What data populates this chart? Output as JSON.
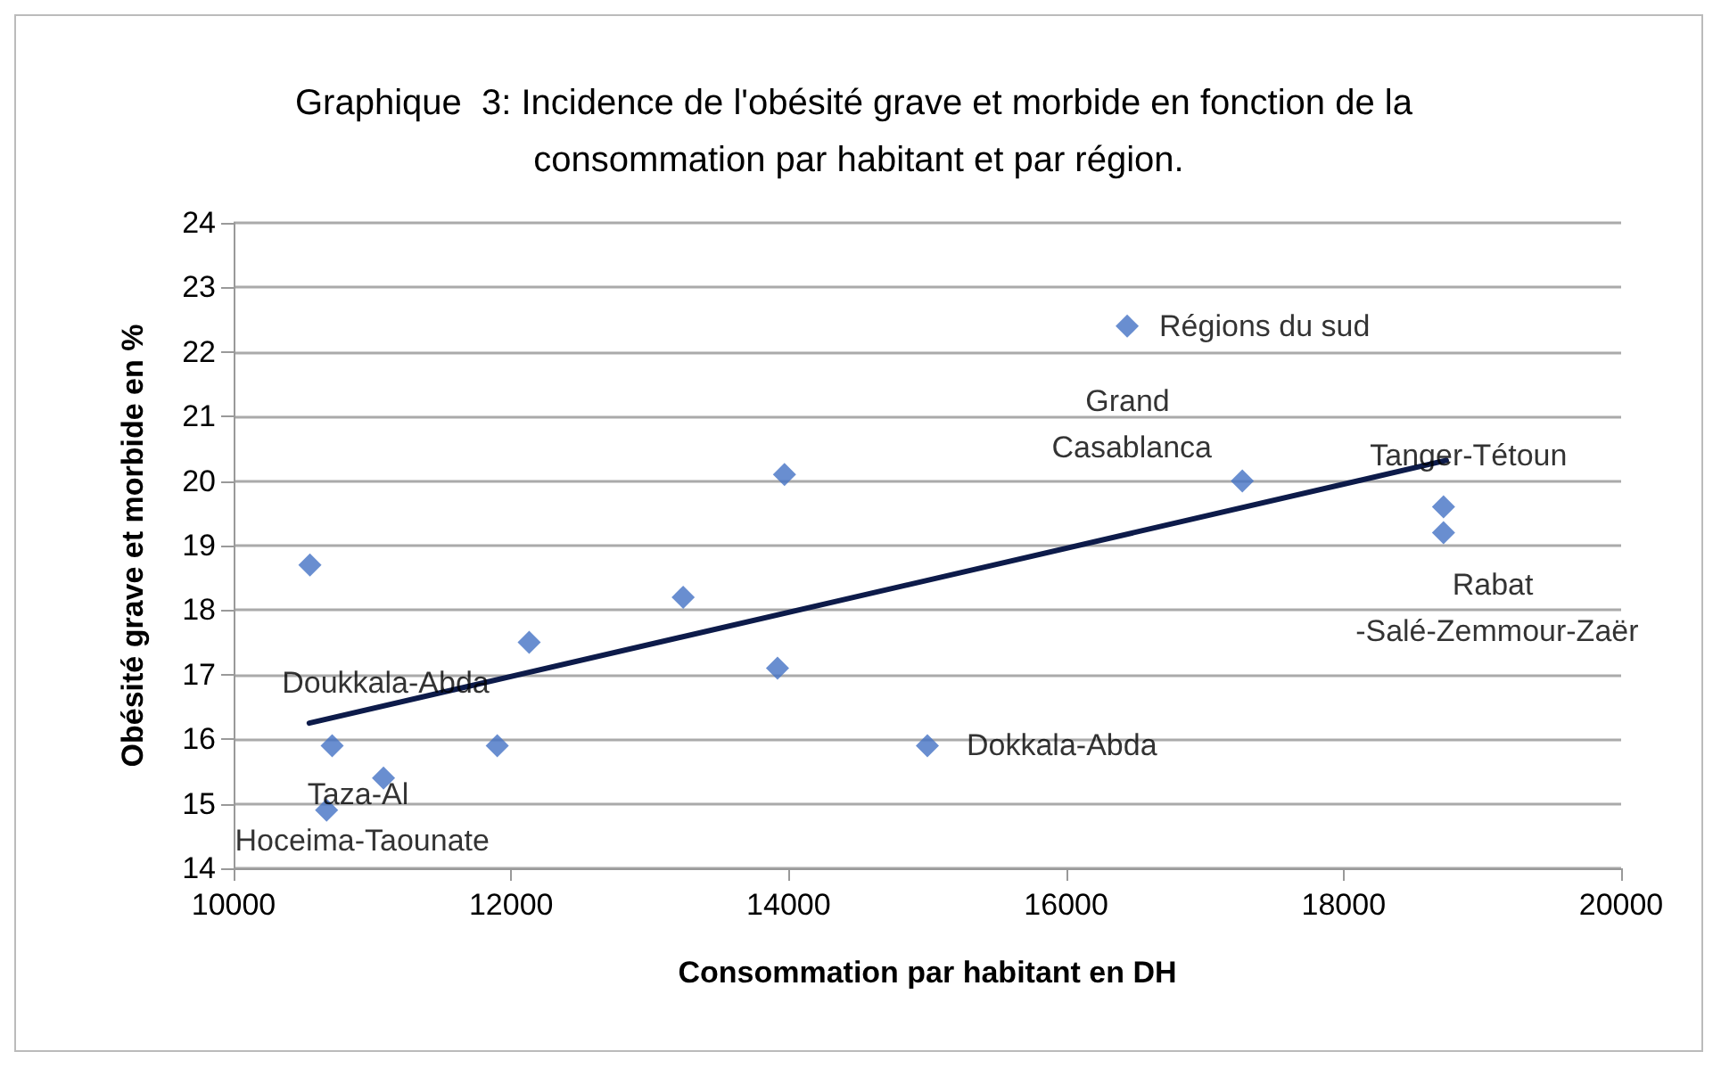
{
  "chart_data": {
    "type": "scatter",
    "title": "Graphique  3: Incidence de l'obésité grave et morbide en fonction de la consommation par habitant et par région.",
    "xlabel": "Consommation par habitant en DH",
    "ylabel": "Obésité grave et morbide en %",
    "series": [
      {
        "color": "#4472c4",
        "marker": "diamond",
        "x": [
          10550,
          10710,
          11080,
          10670,
          11900,
          12130,
          13240,
          13970,
          13920,
          15000,
          16440,
          17270,
          18720,
          18720
        ],
        "values": [
          18.7,
          15.9,
          15.4,
          14.9,
          15.9,
          17.5,
          18.2,
          20.1,
          17.1,
          15.9,
          22.4,
          20.0,
          19.6,
          19.2
        ]
      },
      {
        "type": "line",
        "color": "#0d1b4a",
        "marker": "none",
        "line_style": "solid",
        "x": [
          10545,
          18740
        ],
        "values": [
          16.25,
          20.32
        ]
      }
    ],
    "annotations": [
      {
        "text": "Régions du sud",
        "x": 16440,
        "y": 22.4
      },
      {
        "text": "Grand Casablanca",
        "x": 17270,
        "y": 20.0
      },
      {
        "text": "Tanger-Tétoun",
        "x": 18720,
        "y": 19.6
      },
      {
        "text": "Rabat -Salé-Zemmour-Zaër",
        "x": 18720,
        "y": 19.2
      },
      {
        "text": "Dokkala-Abda",
        "x": 15000,
        "y": 15.9
      },
      {
        "text": "Doukkala-Abda",
        "x": 10710,
        "y": 15.9
      },
      {
        "text": "Taza-Al Hoceima-Taounate",
        "x": 10670,
        "y": 14.9
      }
    ],
    "xlim": [
      10000,
      20000
    ],
    "xticks": [
      10000,
      12000,
      14000,
      16000,
      18000,
      20000
    ],
    "ylim": [
      14,
      24
    ],
    "yticks": [
      14,
      15,
      16,
      17,
      18,
      19,
      20,
      21,
      22,
      23,
      24
    ],
    "grid": "y"
  }
}
